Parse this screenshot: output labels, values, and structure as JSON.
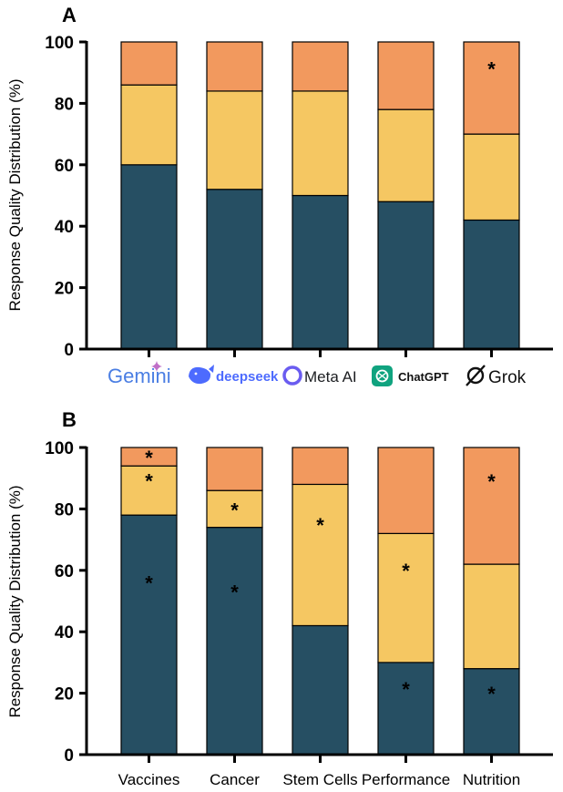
{
  "colors": {
    "dark": "#264f63",
    "mid": "#f5c762",
    "light": "#f2995e",
    "axis": "#000000",
    "gemini_blue": "#4a7ee3",
    "gemini_pink": "#c070c8",
    "deepseek_blue": "#4d6bfe",
    "meta_blue": "#0668e1",
    "meta_purple": "#b04fe0",
    "chatgpt_green": "#10a37f",
    "grok_black": "#111111"
  },
  "logos": {
    "gemini": "Gemini",
    "deepseek": "deepseek",
    "meta": "Meta AI",
    "chatgpt": "ChatGPT",
    "grok": "Grok"
  },
  "chart_data": [
    {
      "panel": "A",
      "type": "bar",
      "stacked": true,
      "ylabel": "Response Quality Distribution (%)",
      "ylim": [
        0,
        100
      ],
      "yticks": [
        "0",
        "20",
        "40",
        "60",
        "80",
        "100"
      ],
      "categories": [
        "Gemini",
        "deepseek",
        "Meta AI",
        "ChatGPT",
        "Grok"
      ],
      "category_labels_as_logos": true,
      "series": [
        {
          "name": "bottom",
          "color_key": "dark",
          "values": [
            60,
            52,
            50,
            48,
            42
          ]
        },
        {
          "name": "middle",
          "color_key": "mid",
          "values": [
            26,
            32,
            34,
            30,
            28
          ]
        },
        {
          "name": "top",
          "color_key": "light",
          "values": [
            14,
            16,
            16,
            22,
            30
          ]
        }
      ],
      "annotations": [
        {
          "category_index": 4,
          "series_index": 2,
          "text": "*",
          "placement": "upper"
        }
      ]
    },
    {
      "panel": "B",
      "type": "bar",
      "stacked": true,
      "ylabel": "Response Quality Distribution (%)",
      "ylim": [
        0,
        100
      ],
      "yticks": [
        "0",
        "20",
        "40",
        "60",
        "80",
        "100"
      ],
      "categories": [
        "Vaccines",
        "Cancer",
        "Stem Cells",
        "Performance",
        "Nutrition"
      ],
      "category_labels_as_logos": false,
      "series": [
        {
          "name": "bottom",
          "color_key": "dark",
          "values": [
            78,
            74,
            42,
            30,
            28
          ]
        },
        {
          "name": "middle",
          "color_key": "mid",
          "values": [
            16,
            12,
            46,
            42,
            34
          ]
        },
        {
          "name": "top",
          "color_key": "light",
          "values": [
            6,
            14,
            12,
            28,
            38
          ]
        }
      ],
      "annotations": [
        {
          "category_index": 0,
          "series_index": 0,
          "text": "*",
          "placement": "upper"
        },
        {
          "category_index": 0,
          "series_index": 1,
          "text": "*",
          "placement": "upper"
        },
        {
          "category_index": 0,
          "series_index": 2,
          "text": "*",
          "placement": "center"
        },
        {
          "category_index": 1,
          "series_index": 0,
          "text": "*",
          "placement": "upper"
        },
        {
          "category_index": 1,
          "series_index": 1,
          "text": "*",
          "placement": "center"
        },
        {
          "category_index": 2,
          "series_index": 1,
          "text": "*",
          "placement": "upper"
        },
        {
          "category_index": 3,
          "series_index": 0,
          "text": "*",
          "placement": "upper"
        },
        {
          "category_index": 3,
          "series_index": 1,
          "text": "*",
          "placement": "upper"
        },
        {
          "category_index": 4,
          "series_index": 0,
          "text": "*",
          "placement": "upper"
        },
        {
          "category_index": 4,
          "series_index": 2,
          "text": "*",
          "placement": "upper"
        }
      ]
    }
  ]
}
